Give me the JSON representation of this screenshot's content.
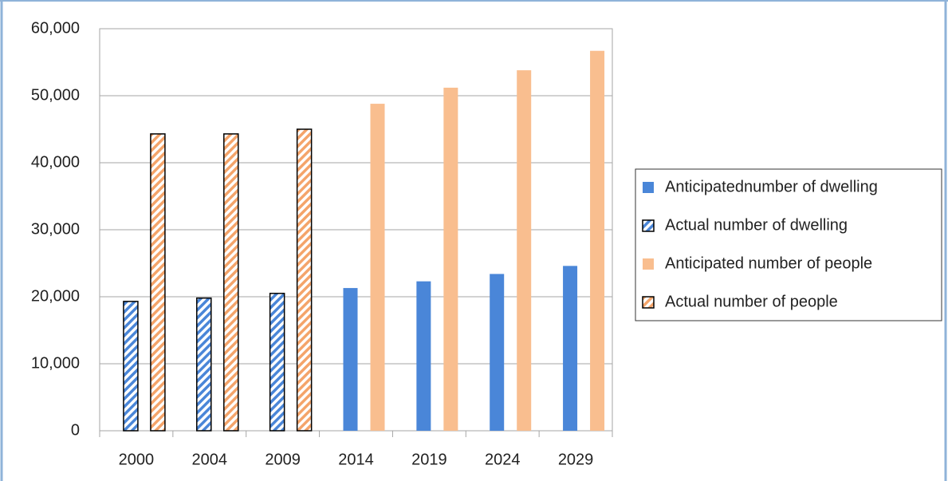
{
  "chart_data": {
    "type": "bar",
    "categories": [
      "2000",
      "2004",
      "2009",
      "2014",
      "2019",
      "2024",
      "2029"
    ],
    "series": [
      {
        "name": "Anticipatednumber of dwelling",
        "color": "#4a86d8",
        "pattern": "solid",
        "values": [
          null,
          null,
          null,
          21300,
          22300,
          23400,
          24600
        ]
      },
      {
        "name": "Actual number of dwelling",
        "color": "#4a86d8",
        "pattern": "hatch",
        "values": [
          19300,
          19800,
          20500,
          null,
          null,
          null,
          null
        ]
      },
      {
        "name": "Anticipated number of people",
        "color": "#f9be8f",
        "pattern": "solid",
        "values": [
          null,
          null,
          null,
          48800,
          51200,
          53800,
          56700
        ]
      },
      {
        "name": "Actual number of people",
        "color": "#f4a46a",
        "pattern": "hatch",
        "values": [
          44300,
          44300,
          45000,
          null,
          null,
          null,
          null
        ]
      }
    ],
    "ylim": [
      0,
      60000
    ],
    "yticks": [
      {
        "value": 0,
        "label": "0"
      },
      {
        "value": 10000,
        "label": "10,000"
      },
      {
        "value": 20000,
        "label": "20,000"
      },
      {
        "value": 30000,
        "label": "30,000"
      },
      {
        "value": 40000,
        "label": "40,000"
      },
      {
        "value": 50000,
        "label": "50,000"
      },
      {
        "value": 60000,
        "label": "60,000"
      }
    ],
    "grid": true,
    "legend": "right"
  }
}
